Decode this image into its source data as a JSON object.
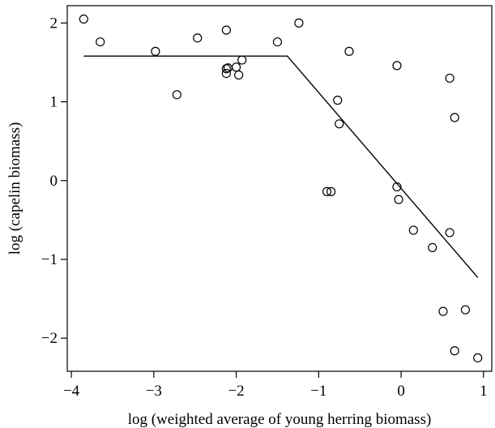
{
  "chart_data": {
    "type": "scatter",
    "title": "",
    "xlabel": "log (weighted average of young herring biomass)",
    "ylabel": "log (capelin biomass)",
    "xlim": [
      -4.05,
      1.1
    ],
    "ylim": [
      -2.42,
      2.22
    ],
    "xticks": [
      -4,
      -3,
      -2,
      -1,
      0,
      1
    ],
    "xtick_labels": [
      "−4",
      "−3",
      "−2",
      "−1",
      "0",
      "1"
    ],
    "yticks": [
      -2,
      -1,
      0,
      1,
      2
    ],
    "ytick_labels": [
      "−2",
      "−1",
      "0",
      "1",
      "2"
    ],
    "grid": false,
    "legend": "none",
    "series": [
      {
        "marker": "open-circle",
        "x": [
          -3.85,
          -3.65,
          -2.98,
          -2.72,
          -2.47,
          -2.12,
          -2.12,
          -2.1,
          -2.12,
          -2.0,
          -1.97,
          -1.93,
          -1.5,
          -1.24,
          -0.77,
          -0.75,
          -0.9,
          -0.85,
          -0.63,
          -0.05,
          -0.03,
          -0.05,
          0.15,
          0.38,
          0.59,
          0.59,
          0.65,
          0.51,
          0.78,
          0.65,
          0.93
        ],
        "y": [
          2.05,
          1.76,
          1.64,
          1.09,
          1.81,
          1.91,
          1.42,
          1.43,
          1.36,
          1.44,
          1.34,
          1.53,
          1.76,
          2.0,
          1.02,
          0.72,
          -0.14,
          -0.14,
          1.64,
          1.46,
          -0.24,
          -0.08,
          -0.63,
          -0.85,
          1.3,
          -0.66,
          0.8,
          -1.66,
          -1.64,
          -2.16,
          -2.25
        ]
      },
      {
        "kind": "fitted-line",
        "x": [
          -3.85,
          -1.38,
          0.93
        ],
        "y": [
          1.58,
          1.58,
          -1.23
        ]
      }
    ]
  }
}
